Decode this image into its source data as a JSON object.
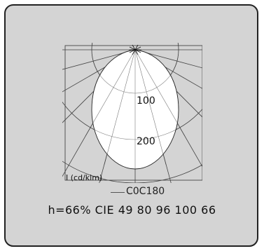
{
  "diagram": {
    "scale_labels": [
      "100",
      "200"
    ],
    "unit_label": "I (cd/klm)"
  },
  "legend": {
    "curve_label": "C0C180"
  },
  "stats_line": "h=66% CIE 49 80 96 100 66"
}
